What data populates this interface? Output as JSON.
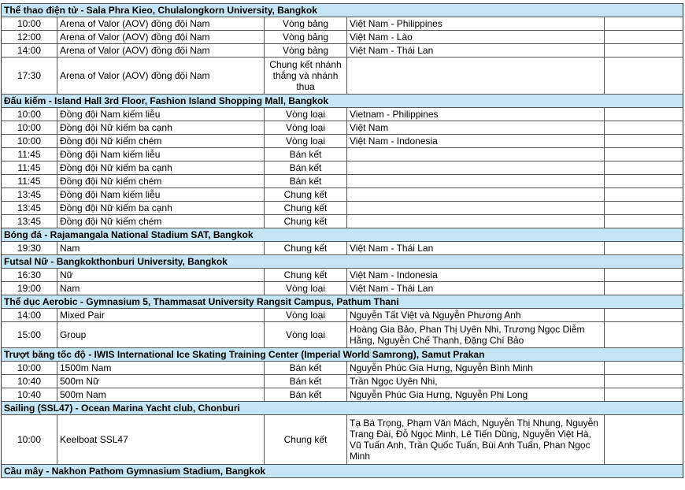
{
  "sections": [
    {
      "title": "Thể thao điện tử - Sala Phra Kieo, Chulalongkorn University, Bangkok",
      "rows": [
        [
          "10:00",
          "Arena of Valor (AOV) đồng đội Nam",
          "Vòng bảng",
          "Việt Nam - Philippines"
        ],
        [
          "12:00",
          "Arena of Valor (AOV) đồng đội Nam",
          "Vòng bảng",
          "Việt Nam - Lào"
        ],
        [
          "14:00",
          "Arena of Valor (AOV) đồng đội Nam",
          "Vòng bảng",
          "Việt Nam - Thái Lan"
        ],
        [
          "17:30",
          "Arena of Valor (AOV) đồng đội Nam",
          "Chung kết nhánh thắng và nhánh thua",
          ""
        ]
      ]
    },
    {
      "title": "Đấu kiếm - Island Hall 3rd Floor, Fashion Island Shopping Mall, Bangkok",
      "rows": [
        [
          "10:00",
          "Đồng đội Nam kiếm liễu",
          "Vòng loại",
          "Vietnam - Philippines"
        ],
        [
          "10:00",
          "Đồng đội Nữ kiếm ba cạnh",
          "Vòng loại",
          "Việt Nam"
        ],
        [
          "10:00",
          "Đồng đội Nữ kiếm chém",
          "Vòng loại",
          "Việt Nam - Indonesia"
        ],
        [
          "11:45",
          "Đồng đội Nam kiếm liễu",
          "Bán kết",
          ""
        ],
        [
          "11:45",
          "Đồng đội Nữ kiếm ba cạnh",
          "Bán kết",
          ""
        ],
        [
          "11:45",
          "Đồng đội Nữ kiếm chém",
          "Bán kết",
          ""
        ],
        [
          "13:45",
          "Đồng đội Nam kiếm liễu",
          "Chung kết",
          ""
        ],
        [
          "13:45",
          "Đồng đội Nữ kiếm ba cạnh",
          "Chung kết",
          ""
        ],
        [
          "13:45",
          "Đồng đội Nữ kiếm chém",
          "Chung kết",
          ""
        ]
      ]
    },
    {
      "title": "Bóng đá - Rajamangala National Stadium SAT, Bangkok",
      "rows": [
        [
          "19:30",
          "Nam",
          "Chung kết",
          "Việt Nam - Thái Lan"
        ]
      ]
    },
    {
      "title": "Futsal Nữ - Bangkokthonburi University, Bangkok",
      "rows": [
        [
          "16:30",
          "Nữ",
          "Chung kết",
          "Việt Nam - Indonesia"
        ],
        [
          "19:00",
          "Nam",
          "Vòng loại",
          "Việt Nam - Thái Lan"
        ]
      ]
    },
    {
      "title": "Thể dục Aerobic - Gymnasium 5, Thammasat University Rangsit Campus, Pathum Thani",
      "rows": [
        [
          "14:00",
          "Mixed Pair",
          "Vòng loại",
          "Nguyễn Tất Việt và Nguyễn Phương Anh"
        ],
        [
          "15:00",
          "Group",
          "Vòng loại",
          "Hoàng Gia Bảo, Phan Thị Uyên Nhi, Trương Ngọc Diễm Hằng, Nguyễn Chế Thanh, Đặng Chí Bảo"
        ]
      ]
    },
    {
      "title": "Trượt băng tốc độ - IWIS International Ice Skating Training Center (Imperial World Samrong), Samut Prakan",
      "rows": [
        [
          "10:00",
          "1500m Nam",
          "Bán kết",
          "Nguyễn Phúc Gia Hưng, Nguyễn Bình Minh"
        ],
        [
          "10:40",
          "500m Nữ",
          "Bán kết",
          "Trần Ngọc Uyên Nhi,"
        ],
        [
          "10:40",
          "500m Nam",
          "Bán kết",
          "Nguyễn Phúc Gia Hưng, Nguyễn Phi Long"
        ]
      ]
    },
    {
      "title": "Sailing (SSL47) - Ocean Marina Yacht club, Chonburi",
      "rows": [
        [
          "10:00",
          "Keelboat SSL47",
          "Chung kết",
          "Tạ Bá Trọng, Phạm Văn Mách, Nguyễn Thị Nhung, Nguyễn Trang Đài, Đỗ Ngọc Minh, Lê Tiến Dũng, Nguyễn Việt Hà, Vũ Tuấn Anh, Trần Quốc Tuấn, Bùi Anh Tuấn, Phan Ngọc Minh"
        ]
      ]
    },
    {
      "title": "Cầu mây - Nakhon Pathom Gymnasium Stadium, Bangkok",
      "rows": []
    }
  ],
  "colors": {
    "section_header_bg": "#c5e5f4"
  }
}
